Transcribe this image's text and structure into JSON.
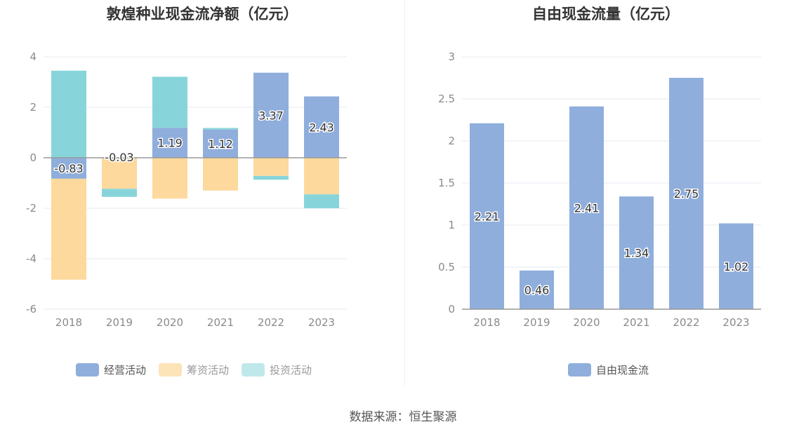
{
  "source": "数据来源：恒生聚源",
  "colors": {
    "operating": "#8faedc",
    "financing": "#fdd99d",
    "investing": "#87d5da",
    "free_cash": "#8faedc",
    "grid": "#e6e9f0",
    "axis": "#999999"
  },
  "chart_data": [
    {
      "type": "bar",
      "stacked": true,
      "title": "敦煌种业现金流净额（亿元）",
      "categories": [
        "2018",
        "2019",
        "2020",
        "2021",
        "2022",
        "2023"
      ],
      "ylim": [
        -6,
        4
      ],
      "yticks": [
        "4",
        "2",
        "0",
        "-2",
        "-4",
        "-6"
      ],
      "series": [
        {
          "name": "经营活动",
          "values": [
            -0.83,
            -0.03,
            1.19,
            1.12,
            3.37,
            2.43
          ],
          "labels": [
            "-0.83",
            "-0.03",
            "1.19",
            "1.12",
            "3.37",
            "2.43"
          ]
        },
        {
          "name": "筹资活动",
          "values": [
            -4.0,
            -1.2,
            -1.62,
            -1.3,
            -0.72,
            -1.45
          ]
        },
        {
          "name": "投资活动",
          "values": [
            3.45,
            -0.32,
            2.02,
            0.06,
            -0.15,
            -0.55
          ]
        }
      ],
      "legend": "bottom",
      "grid": true
    },
    {
      "type": "bar",
      "title": "自由现金流量（亿元）",
      "categories": [
        "2018",
        "2019",
        "2020",
        "2021",
        "2022",
        "2023"
      ],
      "ylim": [
        0,
        3
      ],
      "yticks": [
        "3",
        "2.5",
        "2",
        "1.5",
        "1",
        "0.5",
        "0"
      ],
      "series": [
        {
          "name": "自由现金流",
          "values": [
            2.21,
            0.46,
            2.41,
            1.34,
            2.75,
            1.02
          ],
          "labels": [
            "2.21",
            "0.46",
            "2.41",
            "1.34",
            "2.75",
            "1.02"
          ]
        }
      ],
      "legend": "bottom",
      "grid": true
    }
  ]
}
